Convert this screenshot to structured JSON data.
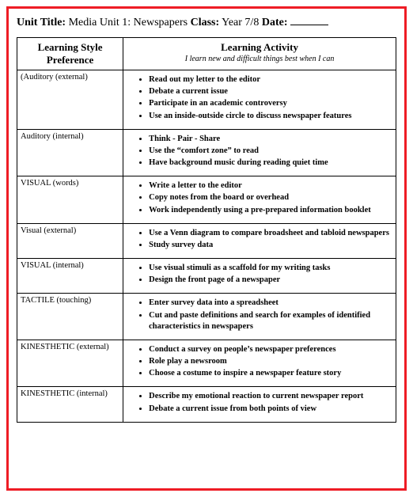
{
  "header": {
    "unit_title_label": "Unit Title:",
    "unit_title_value": "Media Unit 1:  Newspapers",
    "class_label": "Class:",
    "class_value": "Year 7/8",
    "date_label": "Date:"
  },
  "table": {
    "col1_header": "Learning Style Preference",
    "col2_header": "Learning Activity",
    "col2_subheader": "I learn new and difficult things best when I can",
    "rows": [
      {
        "pref": "(Auditory (external)",
        "items": [
          "Read out my letter to the editor",
          "Debate a current issue",
          "Participate in an academic controversy",
          "Use an inside-outside circle to discuss newspaper features"
        ]
      },
      {
        "pref": "Auditory (internal)",
        "items": [
          "Think -  Pair -  Share",
          "Use the “comfort  zone” to read",
          "Have background music during reading quiet time"
        ]
      },
      {
        "pref": "VISUAL (words)",
        "items": [
          "Write a letter to the editor",
          "Copy notes from the board or overhead",
          "Work independently using a pre-prepared information booklet"
        ]
      },
      {
        "pref": "Visual (external)",
        "items": [
          "Use a Venn diagram to compare broadsheet and tabloid newspapers",
          "Study survey data"
        ]
      },
      {
        "pref": "VISUAL (internal)",
        "items": [
          "Use visual stimuli as a scaffold for my writing tasks",
          "Design the front page of a newspaper"
        ]
      },
      {
        "pref": "TACTILE (touching)",
        "items": [
          "Enter survey data into a spreadsheet",
          "Cut and paste definitions and search for examples of identified characteristics in newspapers"
        ]
      },
      {
        "pref": "KINESTHETIC (external)",
        "items": [
          "Conduct a survey on people’s newspaper preferences",
          "Role play a newsroom",
          "Choose a costume to inspire a newspaper feature story"
        ]
      },
      {
        "pref": "KINESTHETIC (internal)",
        "items": [
          "Describe my emotional reaction to current newspaper report",
          "Debate a current issue from both points of view"
        ]
      }
    ]
  },
  "colors": {
    "frame": "#ee1c25",
    "border": "#000000",
    "background": "#ffffff"
  }
}
